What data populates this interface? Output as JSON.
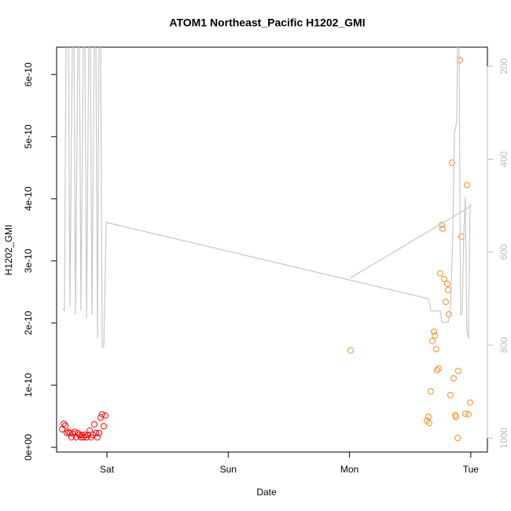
{
  "chart_data": {
    "type": "scatter",
    "title": "ATOM1 Northeast_Pacific H1202_GMI",
    "x_label": "Date",
    "y_label": "H1202_GMI",
    "xlim": [
      -0.415,
      3.137
    ],
    "xticks": [
      {
        "value": 0,
        "label": "Sat"
      },
      {
        "value": 1,
        "label": "Sun"
      },
      {
        "value": 2,
        "label": "Mon"
      },
      {
        "value": 3,
        "label": "Tue"
      }
    ],
    "ylim": [
      -7.6e-12,
      6.44e-10
    ],
    "yticks": [
      {
        "value": 0,
        "label": "0e+00"
      },
      1e-10,
      2e-10,
      3e-10,
      4e-10,
      5e-10,
      6e-10
    ],
    "y2lim": [
      1030,
      159
    ],
    "y2ticks": [
      200,
      400,
      600,
      800,
      1000
    ],
    "series": [
      {
        "type": "scatter",
        "color": "#ff0000",
        "x": [
          -0.369,
          -0.356,
          -0.343,
          -0.331,
          -0.318,
          -0.305,
          -0.292,
          -0.279,
          -0.266,
          -0.253,
          -0.24,
          -0.227,
          -0.214,
          -0.207,
          -0.194,
          -0.181,
          -0.168,
          -0.156,
          -0.143,
          -0.13,
          -0.117,
          -0.104,
          -0.091,
          -0.078,
          -0.065,
          -0.052,
          -0.039,
          -0.026,
          -0.013
        ],
        "values": [
          2.9e-11,
          3.8e-11,
          3.5e-11,
          2.3e-11,
          2.5e-11,
          2.3e-11,
          1.6e-11,
          2.2e-11,
          2.5e-11,
          1.6e-11,
          2.3e-11,
          2e-11,
          1.6e-11,
          2e-11,
          1.6e-11,
          2e-11,
          1.6e-11,
          2e-11,
          2.7e-11,
          1.6e-11,
          2e-11,
          3.7e-11,
          2.3e-11,
          1.6e-11,
          2.3e-11,
          4.8e-11,
          5.3e-11,
          3.4e-11,
          5.1e-11
        ]
      },
      {
        "type": "scatter",
        "color": "#f28e1c",
        "x": [
          2.009,
          2.638,
          2.651,
          2.657,
          2.67,
          2.683,
          2.696,
          2.703,
          2.715,
          2.722,
          2.735,
          2.748,
          2.761,
          2.767,
          2.78,
          2.793,
          2.806,
          2.813,
          2.819,
          2.832,
          2.845,
          2.858,
          2.871,
          2.877,
          2.891,
          2.897,
          2.91,
          2.923,
          2.955,
          2.968,
          2.981,
          2.994
        ],
        "values": [
          1.56e-10,
          4.3e-11,
          4.9e-11,
          3.9e-11,
          9e-11,
          1.71e-10,
          1.86e-10,
          1.8e-10,
          1.58e-10,
          1.24e-10,
          1.27e-10,
          2.8e-10,
          3.58e-10,
          3.52e-10,
          2.71e-10,
          2.34e-10,
          2.63e-10,
          2.53e-10,
          2.14e-10,
          8.4e-11,
          4.58e-10,
          1.11e-10,
          5.2e-11,
          4.9e-11,
          1.5e-11,
          1.23e-10,
          6.23e-10,
          3.39e-10,
          5.4e-11,
          4.22e-10,
          5.3e-11,
          7.2e-11
        ]
      },
      {
        "type": "line",
        "axis": "y2",
        "color": "#c8c8c8",
        "x": [
          -0.363,
          -0.35,
          -0.337,
          -0.318,
          -0.305,
          -0.285,
          -0.272,
          -0.259,
          -0.24,
          -0.227,
          -0.214,
          -0.194,
          -0.181,
          -0.168,
          -0.149,
          -0.136,
          -0.123,
          -0.104,
          -0.091,
          -0.078,
          -0.065,
          -0.052,
          -0.039,
          -0.026,
          -0.006,
          2.651,
          2.67,
          2.748,
          2.761,
          2.813,
          2.832,
          2.852,
          2.865,
          2.884,
          2.891,
          2.903,
          2.916,
          2.929,
          2.942,
          2.955,
          2.968,
          2.981,
          2.994,
          3.001,
          null,
          2.009,
          3.001
        ],
        "values": [
          722,
          726,
          143,
          143,
          717,
          143,
          143,
          734,
          143,
          143,
          726,
          143,
          143,
          743,
          143,
          143,
          734,
          143,
          143,
          785,
          143,
          143,
          805,
          805,
          536,
          700,
          726,
          727,
          751,
          751,
          726,
          565,
          345,
          320,
          143,
          143,
          734,
          734,
          565,
          481,
          768,
          785,
          498,
          501,
          null,
          655,
          501
        ]
      }
    ]
  }
}
